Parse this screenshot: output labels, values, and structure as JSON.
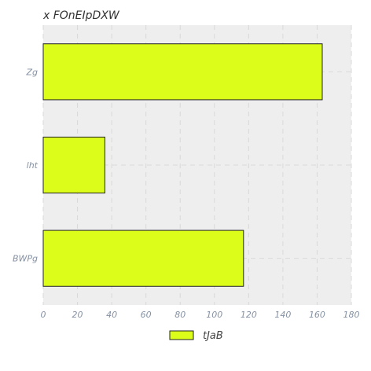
{
  "chart_data": {
    "type": "bar",
    "orientation": "horizontal",
    "title": "x FOnEIpDXW",
    "categories": [
      "Zg",
      "lht",
      "BWPg"
    ],
    "series": [
      {
        "name": "tJaB",
        "values": [
          163,
          36,
          117
        ]
      }
    ],
    "xlim": [
      0,
      180
    ],
    "xticks": [
      0,
      20,
      40,
      60,
      80,
      100,
      120,
      140,
      160,
      180
    ],
    "grid": true,
    "legend_position": "bottom",
    "colors": {
      "bar_fill": "#dcfd1a",
      "bar_stroke": "#222222",
      "plot_background": "#eeeeee",
      "grid": "#d9d9d9"
    }
  }
}
